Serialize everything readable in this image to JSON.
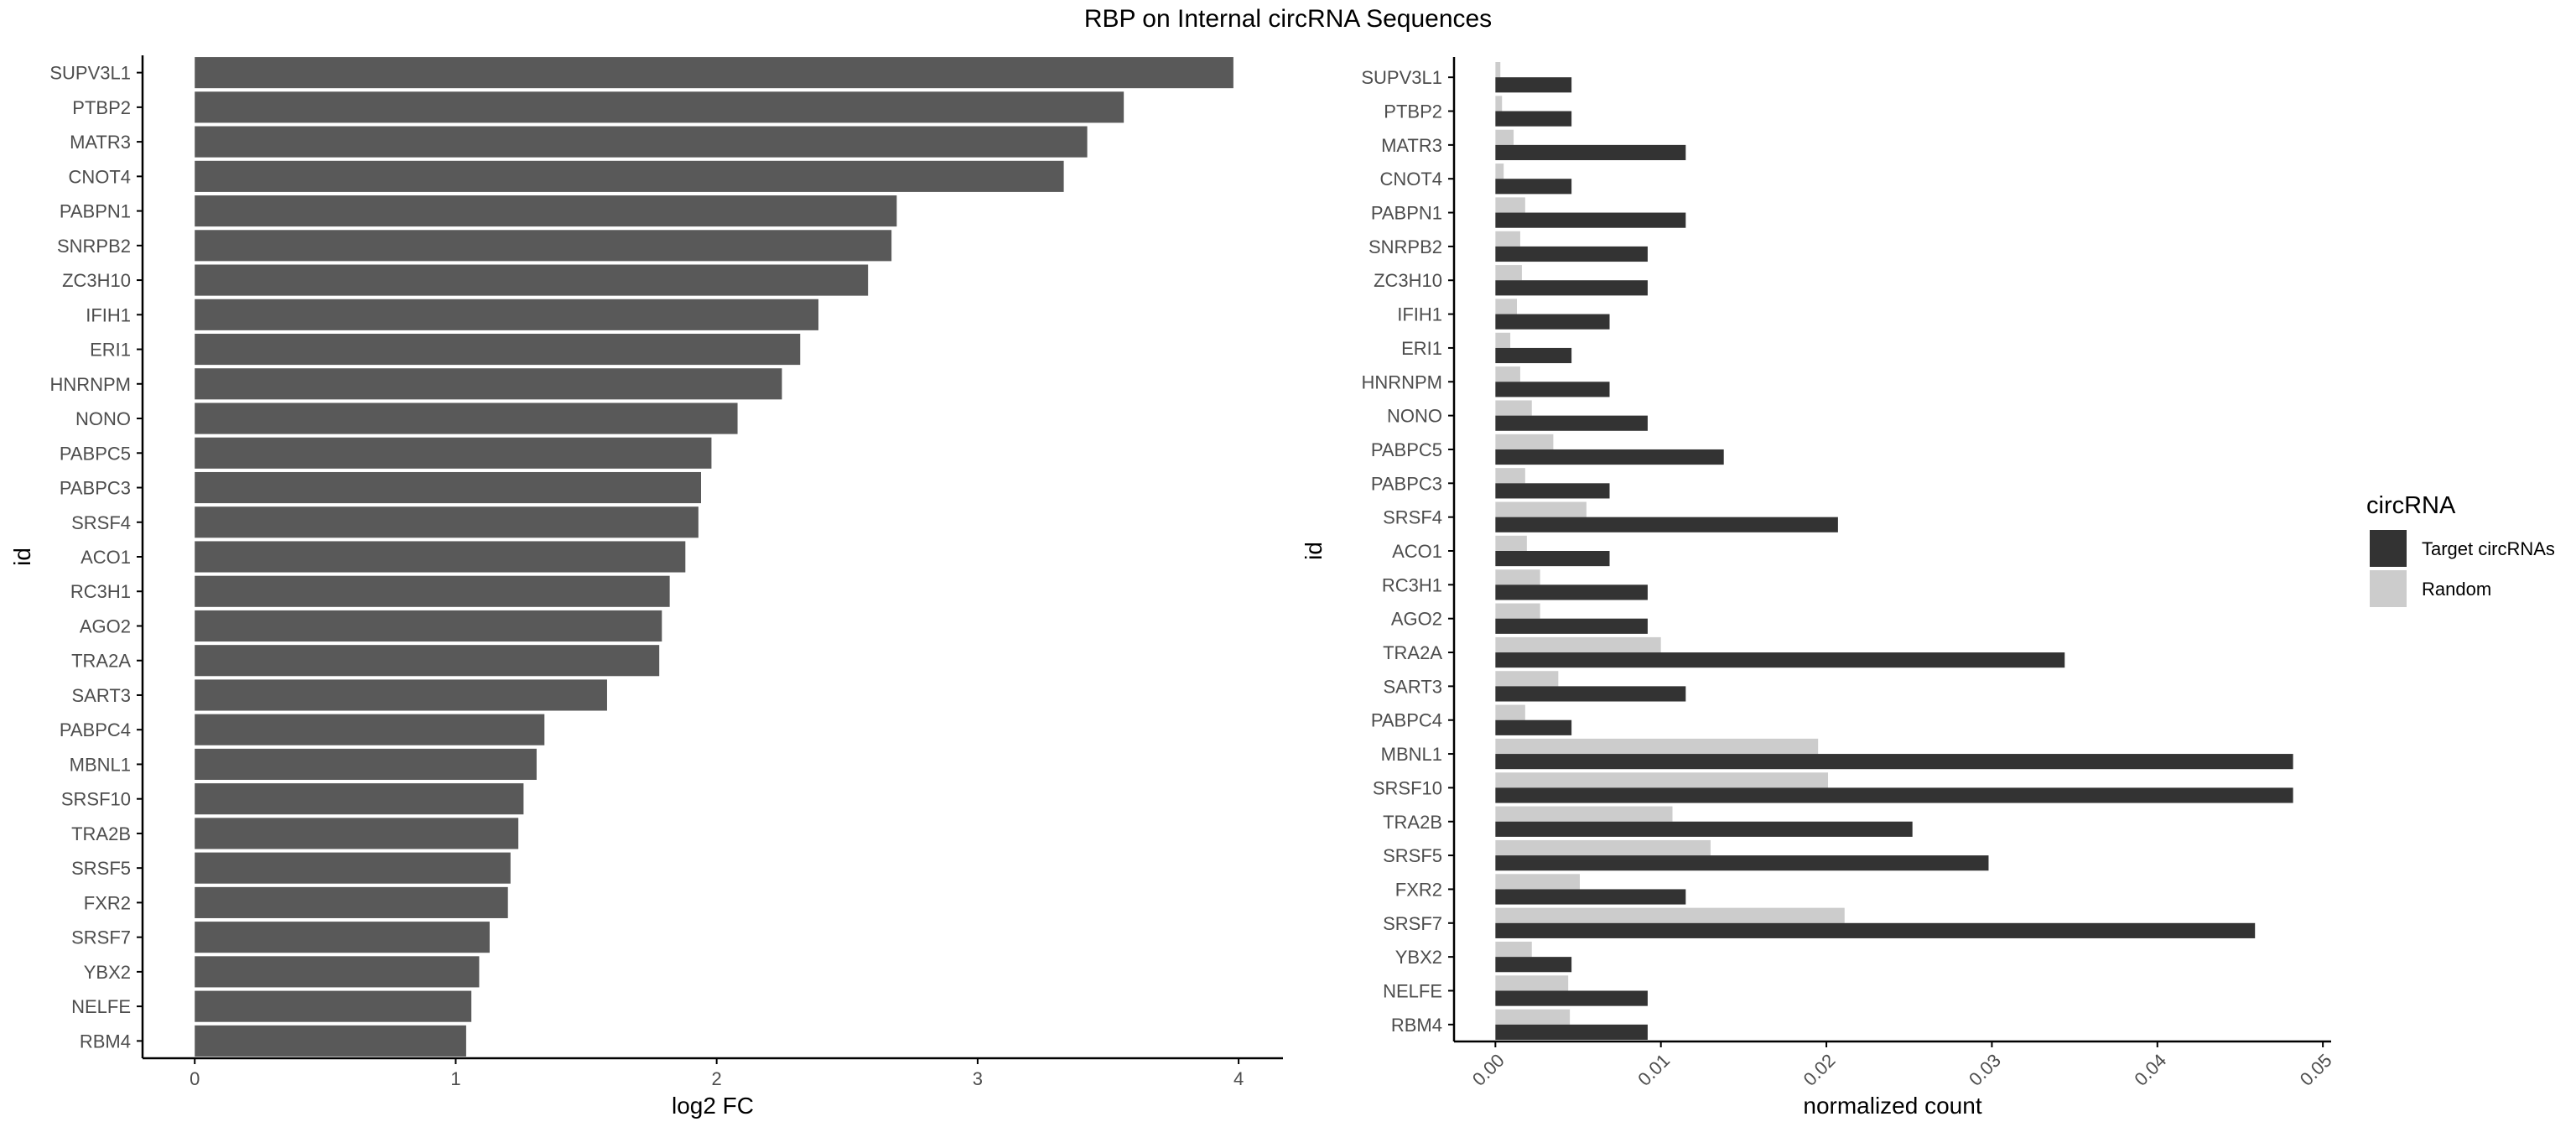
{
  "title": "RBP on Internal circRNA Sequences",
  "colors": {
    "left_bar": "#595959",
    "target": "#333333",
    "random": "#cccccc",
    "axis": "#000000",
    "tick_text": "#4d4d4d"
  },
  "chart_data": [
    {
      "type": "bar",
      "orientation": "horizontal",
      "title": "RBP on Internal circRNA Sequences",
      "xlabel": "log2 FC",
      "ylabel": "id",
      "xlim": [
        -0.2,
        4.17
      ],
      "xticks": [
        0,
        1,
        2,
        3,
        4
      ],
      "grid": false,
      "categories": [
        "SUPV3L1",
        "PTBP2",
        "MATR3",
        "CNOT4",
        "PABPN1",
        "SNRPB2",
        "ZC3H10",
        "IFIH1",
        "ERI1",
        "HNRNPM",
        "NONO",
        "PABPC5",
        "PABPC3",
        "SRSF4",
        "ACO1",
        "RC3H1",
        "AGO2",
        "TRA2A",
        "SART3",
        "PABPC4",
        "MBNL1",
        "SRSF10",
        "TRA2B",
        "SRSF5",
        "FXR2",
        "SRSF7",
        "YBX2",
        "NELFE",
        "RBM4"
      ],
      "values": [
        3.98,
        3.56,
        3.42,
        3.33,
        2.69,
        2.67,
        2.58,
        2.39,
        2.32,
        2.25,
        2.08,
        1.98,
        1.94,
        1.93,
        1.88,
        1.82,
        1.79,
        1.78,
        1.58,
        1.34,
        1.31,
        1.26,
        1.24,
        1.21,
        1.2,
        1.13,
        1.09,
        1.06,
        1.04
      ]
    },
    {
      "type": "bar",
      "orientation": "horizontal",
      "xlabel": "normalized count",
      "ylabel": "id",
      "xlim": [
        -0.0025,
        0.0505
      ],
      "xticks": [
        "0.00",
        "0.01",
        "0.02",
        "0.03",
        "0.04",
        "0.05"
      ],
      "grid": false,
      "legend": {
        "title": "circRNA",
        "position": "right"
      },
      "categories": [
        "SUPV3L1",
        "PTBP2",
        "MATR3",
        "CNOT4",
        "PABPN1",
        "SNRPB2",
        "ZC3H10",
        "IFIH1",
        "ERI1",
        "HNRNPM",
        "NONO",
        "PABPC5",
        "PABPC3",
        "SRSF4",
        "ACO1",
        "RC3H1",
        "AGO2",
        "TRA2A",
        "SART3",
        "PABPC4",
        "MBNL1",
        "SRSF10",
        "TRA2B",
        "SRSF5",
        "FXR2",
        "SRSF7",
        "YBX2",
        "NELFE",
        "RBM4"
      ],
      "series": [
        {
          "name": "Target circRNAs",
          "values": [
            0.0046,
            0.0046,
            0.0115,
            0.0046,
            0.0115,
            0.0092,
            0.0092,
            0.0069,
            0.0046,
            0.0069,
            0.0092,
            0.0138,
            0.0069,
            0.0207,
            0.0069,
            0.0092,
            0.0092,
            0.0344,
            0.0115,
            0.0046,
            0.0482,
            0.0482,
            0.0252,
            0.0298,
            0.0115,
            0.0459,
            0.0046,
            0.0092,
            0.0092
          ]
        },
        {
          "name": "Random",
          "values": [
            0.0003,
            0.0004,
            0.0011,
            0.0005,
            0.0018,
            0.0015,
            0.0016,
            0.0013,
            0.0009,
            0.0015,
            0.0022,
            0.0035,
            0.0018,
            0.0055,
            0.0019,
            0.0027,
            0.0027,
            0.01,
            0.0038,
            0.0018,
            0.0195,
            0.0201,
            0.0107,
            0.013,
            0.0051,
            0.0211,
            0.0022,
            0.0044,
            0.0045
          ]
        }
      ]
    }
  ]
}
